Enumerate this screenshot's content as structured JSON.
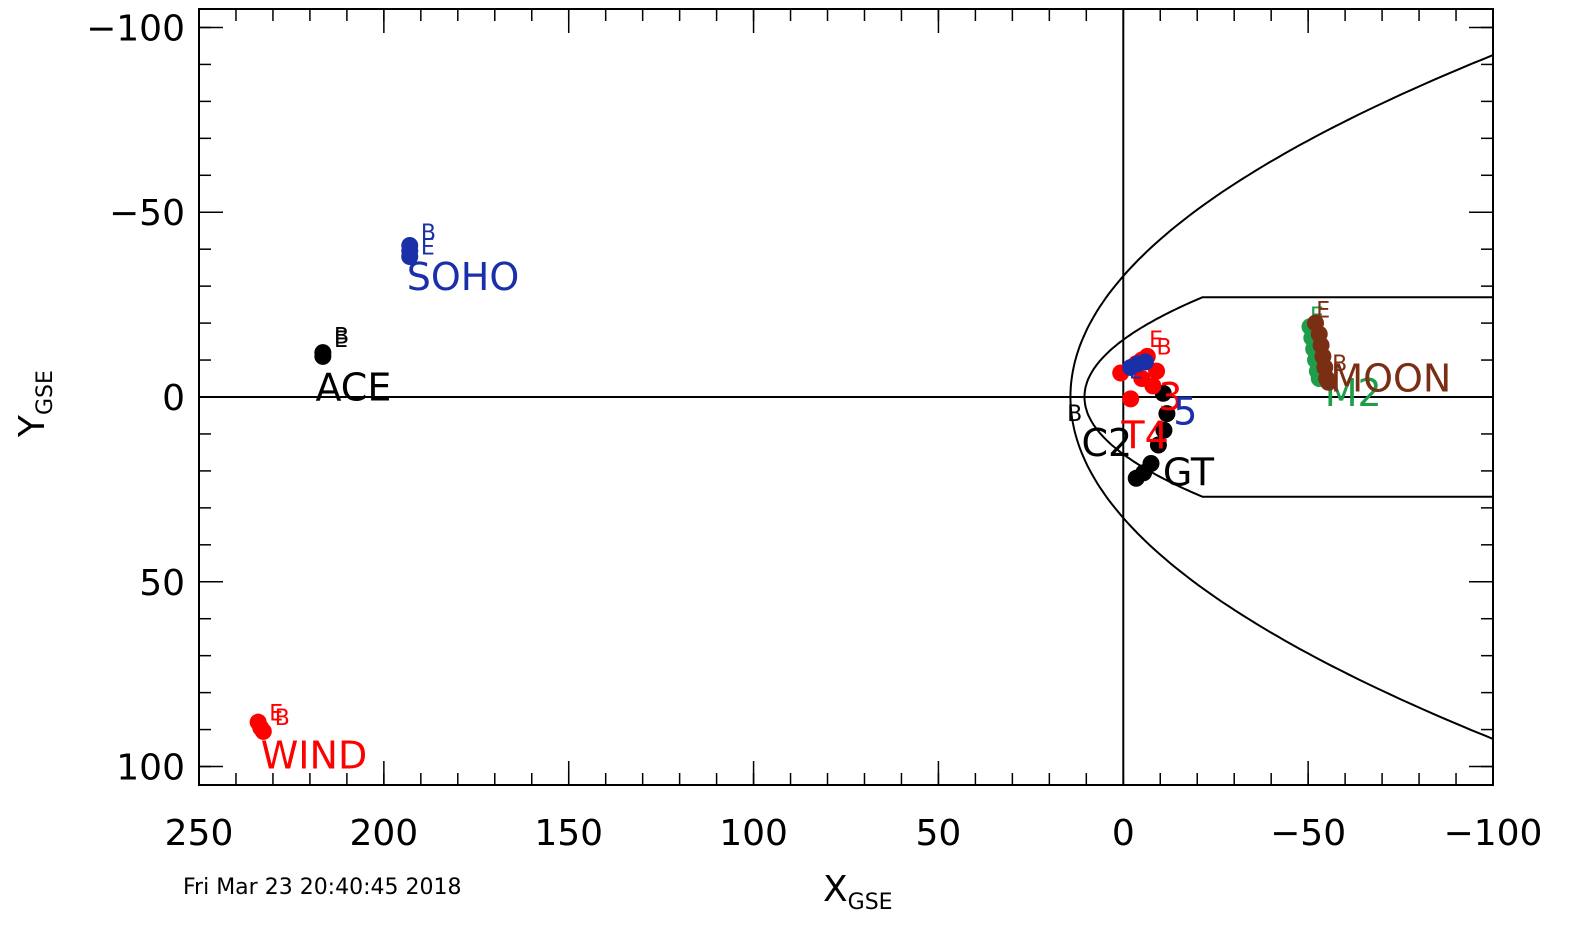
{
  "timestamp": "Fri Mar 23 20:40:45 2018",
  "chart_data": {
    "type": "scatter",
    "title": "",
    "xlabel": {
      "main": "X",
      "sub": "GSE"
    },
    "ylabel": {
      "main": "Y",
      "sub": "GSE"
    },
    "xlim": [
      250,
      -100
    ],
    "ylim": [
      -105,
      105
    ],
    "y_inverted": true,
    "xticks": [
      {
        "v": 250,
        "t": "250"
      },
      {
        "v": 200,
        "t": "200"
      },
      {
        "v": 150,
        "t": "150"
      },
      {
        "v": 100,
        "t": "100"
      },
      {
        "v": 50,
        "t": "50"
      },
      {
        "v": 0,
        "t": "0"
      },
      {
        "v": -50,
        "t": "−50"
      },
      {
        "v": -100,
        "t": "−100"
      }
    ],
    "yticks": [
      {
        "v": -100,
        "t": "−100"
      },
      {
        "v": -50,
        "t": "−50"
      },
      {
        "v": 0,
        "t": "0"
      },
      {
        "v": 50,
        "t": "50"
      },
      {
        "v": 100,
        "t": "100"
      }
    ],
    "x_minor_step": 10,
    "y_minor_step": 10,
    "colors": {
      "black": "#000000",
      "red": "#ff0000",
      "blue": "#1a2fa8",
      "green": "#1e9e4a",
      "brown": "#7a2e14"
    },
    "boundaries": [
      {
        "name": "bow-shock",
        "nose": 14.3,
        "a": -0.01335,
        "x_end": -100
      },
      {
        "name": "magnetopause",
        "nose": 10.5,
        "a": -0.0438,
        "x_flat": -48,
        "y_flat": 27,
        "x_end": -100
      }
    ],
    "series": [
      {
        "name": "ACE",
        "color": "#000000",
        "points": [
          [
            216.5,
            -11
          ],
          [
            216.5,
            -12
          ]
        ],
        "markers": [
          {
            "text": "B",
            "x": 213.5,
            "y": -14.5
          },
          {
            "text": "E",
            "x": 213.5,
            "y": -13.5
          }
        ],
        "label": {
          "text": "ACE",
          "x": 218.5,
          "y": 1
        }
      },
      {
        "name": "SOHO",
        "color": "#1a2fa8",
        "points": [
          [
            193,
            -38
          ],
          [
            193,
            -39.5
          ],
          [
            193,
            -41
          ]
        ],
        "markers": [
          {
            "text": "B",
            "x": 190,
            "y": -42.5
          },
          {
            "text": "E",
            "x": 190,
            "y": -38.5
          }
        ],
        "label": {
          "text": "SOHO",
          "x": 193.8,
          "y": -29
        }
      },
      {
        "name": "WIND",
        "color": "#ff0000",
        "points": [
          [
            234,
            88
          ],
          [
            233.3,
            89.5
          ],
          [
            232.6,
            90.5
          ]
        ],
        "markers": [
          {
            "text": "E",
            "x": 231,
            "y": 87.5
          },
          {
            "text": "B",
            "x": 229.5,
            "y": 88.8
          }
        ],
        "label": {
          "text": "WIND",
          "x": 233.3,
          "y": 100.5
        }
      },
      {
        "name": "C2",
        "color": "#000000",
        "points": [],
        "markers": [
          {
            "text": "B",
            "x": 15.2,
            "y": 6.5
          }
        ],
        "label": {
          "text": "C2",
          "x": 11.3,
          "y": 16
        }
      },
      {
        "name": "GT",
        "color": "#000000",
        "points": [
          [
            -3.5,
            22
          ],
          [
            -5.5,
            20.5
          ],
          [
            -7.5,
            18
          ],
          [
            -9.5,
            13
          ],
          [
            -11,
            9
          ],
          [
            -11.8,
            4.5
          ],
          [
            -10.8,
            -1
          ]
        ],
        "markers": [],
        "label": {
          "text": "GT",
          "x": -10.7,
          "y": 24
        }
      },
      {
        "name": "T4",
        "color": "#ff0000",
        "points": [
          [
            0.7,
            -6.5
          ],
          [
            -2,
            0.5
          ],
          [
            -3.5,
            -9
          ],
          [
            -5,
            -10
          ],
          [
            -6.5,
            -11
          ],
          [
            -8,
            -3
          ],
          [
            -9,
            -7
          ],
          [
            -5,
            -5
          ]
        ],
        "markers": [
          {
            "text": "B",
            "x": -9,
            "y": -11.5
          },
          {
            "text": "E",
            "x": -7,
            "y": -13.5
          }
        ],
        "label": {
          "text": "T4",
          "x": 0.5,
          "y": 14
        }
      },
      {
        "name": "T3",
        "color": "#ff0000",
        "points": [],
        "markers": [],
        "label": {
          "text": "3",
          "x": -9.5,
          "y": 3.5
        }
      },
      {
        "name": "T5",
        "color": "#1a2fa8",
        "points": [
          [
            -2,
            -8
          ],
          [
            -4,
            -9
          ],
          [
            -6,
            -9.5
          ]
        ],
        "markers": [
          {
            "text": "E",
            "x": -1.5,
            "y": -5
          }
        ],
        "label": {
          "text": "5",
          "x": -13.5,
          "y": 7.5
        }
      },
      {
        "name": "M2",
        "color": "#1e9e4a",
        "points": [
          [
            -50.5,
            -19
          ],
          [
            -51,
            -16
          ],
          [
            -51.5,
            -13
          ],
          [
            -52,
            -10
          ],
          [
            -52.5,
            -7
          ],
          [
            -53,
            -5
          ]
        ],
        "markers": [
          {
            "text": "E",
            "x": -50.5,
            "y": -20
          }
        ],
        "label": {
          "text": "M2",
          "x": -54.5,
          "y": 2.5
        }
      },
      {
        "name": "MOON",
        "color": "#7a2e14",
        "points": [
          [
            -52,
            -20
          ],
          [
            -53,
            -17
          ],
          [
            -53.5,
            -14
          ],
          [
            -54,
            -11
          ],
          [
            -54.5,
            -8
          ],
          [
            -55,
            -5
          ],
          [
            -55.5,
            -4
          ]
        ],
        "markers": [
          {
            "text": "E",
            "x": -52.2,
            "y": -21.5
          },
          {
            "text": "B",
            "x": -56.5,
            "y": -7
          }
        ],
        "label": {
          "text": "MOON",
          "x": -56,
          "y": -1.5
        }
      }
    ]
  }
}
